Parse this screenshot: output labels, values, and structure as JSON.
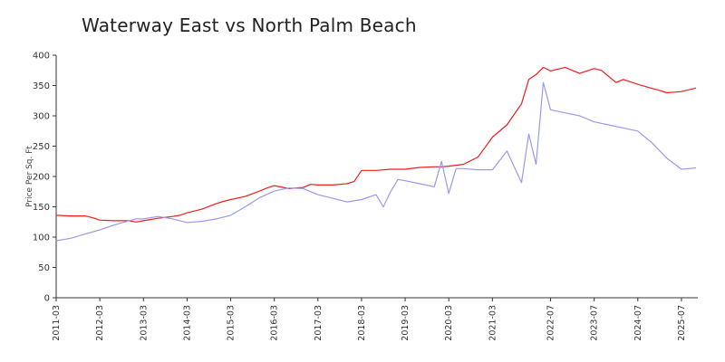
{
  "chart_data": {
    "type": "line",
    "title": "Waterway East vs North Palm Beach",
    "xlabel": "",
    "ylabel": "Price Per Sq. Ft",
    "ylim": [
      0,
      400
    ],
    "yticks": [
      0,
      50,
      100,
      150,
      200,
      250,
      300,
      350,
      400
    ],
    "xticks": [
      "2011-03",
      "2012-03",
      "2013-03",
      "2014-03",
      "2015-03",
      "2016-03",
      "2017-03",
      "2018-03",
      "2019-03",
      "2020-03",
      "2021-03",
      "2022-07",
      "2023-07",
      "2024-07",
      "2025-07"
    ],
    "grid": false,
    "legend": "none",
    "series": [
      {
        "color": "#ee1c1c",
        "points": [
          [
            "2011-03",
            136
          ],
          [
            "2011-07",
            135
          ],
          [
            "2011-11",
            135
          ],
          [
            "2012-01",
            132
          ],
          [
            "2012-03",
            128
          ],
          [
            "2012-07",
            127
          ],
          [
            "2012-11",
            127
          ],
          [
            "2013-01",
            125
          ],
          [
            "2013-03",
            127
          ],
          [
            "2013-07",
            131
          ],
          [
            "2013-11",
            134
          ],
          [
            "2014-01",
            136
          ],
          [
            "2014-03",
            140
          ],
          [
            "2014-07",
            146
          ],
          [
            "2014-11",
            155
          ],
          [
            "2015-01",
            159
          ],
          [
            "2015-03",
            162
          ],
          [
            "2015-07",
            167
          ],
          [
            "2015-11",
            176
          ],
          [
            "2016-01",
            181
          ],
          [
            "2016-03",
            185
          ],
          [
            "2016-07",
            180
          ],
          [
            "2016-11",
            182
          ],
          [
            "2017-01",
            187
          ],
          [
            "2017-03",
            186
          ],
          [
            "2017-07",
            186
          ],
          [
            "2017-11",
            188
          ],
          [
            "2018-01",
            192
          ],
          [
            "2018-03",
            210
          ],
          [
            "2018-07",
            210
          ],
          [
            "2018-11",
            212
          ],
          [
            "2019-01",
            212
          ],
          [
            "2019-03",
            212
          ],
          [
            "2019-07",
            215
          ],
          [
            "2019-11",
            216
          ],
          [
            "2020-01",
            216
          ],
          [
            "2020-03",
            217
          ],
          [
            "2020-07",
            220
          ],
          [
            "2020-11",
            232
          ],
          [
            "2021-01",
            248
          ],
          [
            "2021-03",
            265
          ],
          [
            "2021-07",
            285
          ],
          [
            "2021-11",
            320
          ],
          [
            "2022-01",
            360
          ],
          [
            "2022-03",
            368
          ],
          [
            "2022-05",
            380
          ],
          [
            "2022-07",
            374
          ],
          [
            "2022-11",
            380
          ],
          [
            "2023-01",
            375
          ],
          [
            "2023-03",
            370
          ],
          [
            "2023-07",
            378
          ],
          [
            "2023-09",
            375
          ],
          [
            "2023-11",
            365
          ],
          [
            "2024-01",
            355
          ],
          [
            "2024-03",
            360
          ],
          [
            "2024-07",
            352
          ],
          [
            "2024-11",
            345
          ],
          [
            "2025-01",
            342
          ],
          [
            "2025-03",
            338
          ],
          [
            "2025-07",
            340
          ],
          [
            "2025-11",
            346
          ]
        ]
      },
      {
        "color": "#9999ee",
        "points": [
          [
            "2011-03",
            94
          ],
          [
            "2011-07",
            98
          ],
          [
            "2011-11",
            105
          ],
          [
            "2012-03",
            112
          ],
          [
            "2012-07",
            120
          ],
          [
            "2012-11",
            127
          ],
          [
            "2013-01",
            130
          ],
          [
            "2013-03",
            130
          ],
          [
            "2013-07",
            134
          ],
          [
            "2013-11",
            130
          ],
          [
            "2014-03",
            124
          ],
          [
            "2014-07",
            126
          ],
          [
            "2014-11",
            130
          ],
          [
            "2015-03",
            136
          ],
          [
            "2015-07",
            150
          ],
          [
            "2015-11",
            165
          ],
          [
            "2016-03",
            176
          ],
          [
            "2016-07",
            181
          ],
          [
            "2016-11",
            180
          ],
          [
            "2017-03",
            170
          ],
          [
            "2017-07",
            164
          ],
          [
            "2017-11",
            158
          ],
          [
            "2018-03",
            162
          ],
          [
            "2018-07",
            170
          ],
          [
            "2018-09",
            150
          ],
          [
            "2018-11",
            175
          ],
          [
            "2019-01",
            195
          ],
          [
            "2019-03",
            193
          ],
          [
            "2019-07",
            188
          ],
          [
            "2019-11",
            183
          ],
          [
            "2020-01",
            225
          ],
          [
            "2020-03",
            172
          ],
          [
            "2020-05",
            213
          ],
          [
            "2020-07",
            213
          ],
          [
            "2020-11",
            211
          ],
          [
            "2021-03",
            211
          ],
          [
            "2021-07",
            242
          ],
          [
            "2021-11",
            190
          ],
          [
            "2022-01",
            270
          ],
          [
            "2022-03",
            220
          ],
          [
            "2022-05",
            355
          ],
          [
            "2022-07",
            310
          ],
          [
            "2022-11",
            305
          ],
          [
            "2023-03",
            300
          ],
          [
            "2023-07",
            290
          ],
          [
            "2023-11",
            285
          ],
          [
            "2024-03",
            280
          ],
          [
            "2024-07",
            275
          ],
          [
            "2024-11",
            255
          ],
          [
            "2025-03",
            230
          ],
          [
            "2025-07",
            212
          ],
          [
            "2025-11",
            214
          ]
        ]
      }
    ]
  }
}
